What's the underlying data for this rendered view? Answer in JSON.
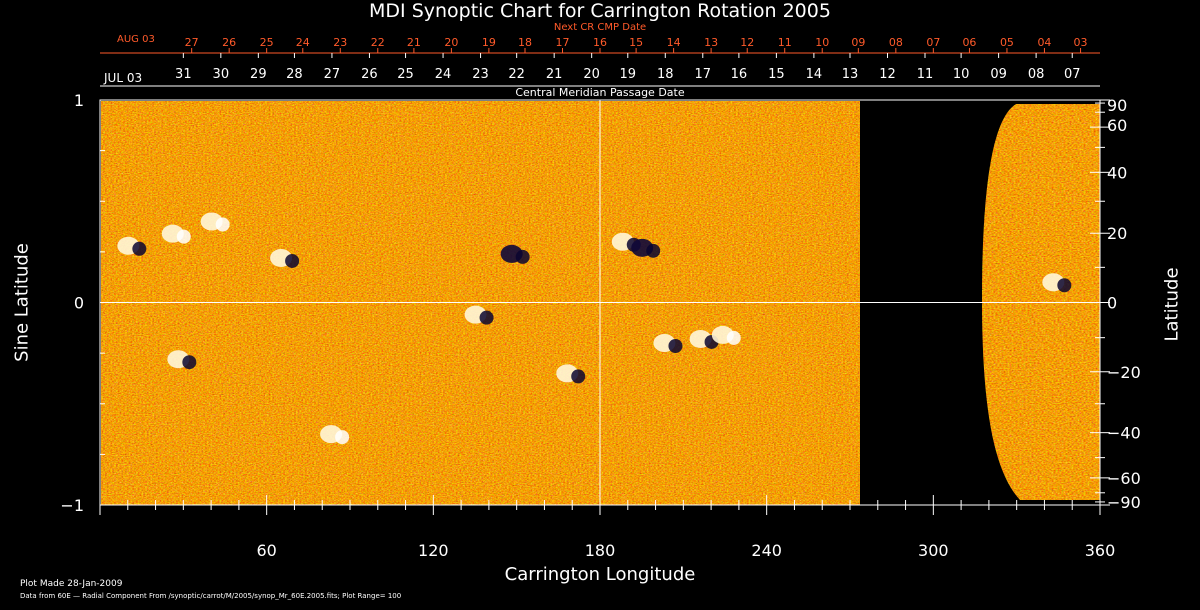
{
  "chart_data": {
    "type": "heatmap",
    "title": "MDI Synoptic Chart for Carrington Rotation 2005",
    "xlabel": "Carrington Longitude",
    "ylabel_left": "Sine Latitude",
    "ylabel_right": "Latitude",
    "xlim": [
      0,
      360
    ],
    "ylim": [
      -1,
      1
    ],
    "x_ticks": [
      "60",
      "120",
      "180",
      "240",
      "300",
      "360"
    ],
    "x_tick_values": [
      60,
      120,
      180,
      240,
      300,
      360
    ],
    "y_left_ticks": [
      "1",
      "0",
      "−1"
    ],
    "y_left_values": [
      1,
      0,
      -1
    ],
    "y_right_ticks": [
      "90",
      "60",
      "40",
      "20",
      "0",
      "−20",
      "−40",
      "−60",
      "−90"
    ],
    "y_right_values": [
      90,
      60,
      40,
      20,
      0,
      -20,
      -40,
      -60,
      -90
    ],
    "top_axis_title": "Next CR CMP Date",
    "top_axis_start": "AUG 03",
    "top_axis_dates": [
      "27",
      "26",
      "25",
      "24",
      "23",
      "22",
      "21",
      "20",
      "19",
      "18",
      "17",
      "16",
      "15",
      "14",
      "13",
      "12",
      "11",
      "10",
      "09",
      "08",
      "07",
      "06",
      "05",
      "04",
      "03"
    ],
    "top_axis_date_longitudes": [
      33,
      46.5,
      60,
      73,
      86.5,
      100,
      113,
      126.5,
      140,
      153,
      166.5,
      180,
      193,
      206.5,
      220,
      233,
      246.5,
      260,
      273,
      286.5,
      300,
      313,
      326.5,
      340,
      353
    ],
    "cmp_axis_title": "Central Meridian Passage Date",
    "cmp_axis_start": "JUL 03",
    "cmp_axis_dates": [
      "31",
      "30",
      "29",
      "28",
      "27",
      "26",
      "25",
      "24",
      "23",
      "22",
      "21",
      "20",
      "19",
      "18",
      "17",
      "16",
      "15",
      "14",
      "13",
      "12",
      "11",
      "10",
      "09",
      "08",
      "07"
    ],
    "cmp_axis_date_longitudes": [
      30,
      43.5,
      57,
      70,
      83.5,
      97,
      110,
      123.5,
      137,
      150,
      163.5,
      177,
      190,
      203.5,
      217,
      230,
      243.5,
      257,
      270,
      283.5,
      297,
      310,
      323.5,
      337,
      350
    ],
    "data_coverage": [
      {
        "region": "observed",
        "lon_range": [
          0,
          273
        ]
      },
      {
        "region": "no-data",
        "lon_range": [
          273,
          318
        ]
      },
      {
        "region": "observed-curved-edge",
        "lon_range": [
          318,
          360
        ]
      }
    ],
    "gridlines": {
      "x": [
        180
      ],
      "y": [
        0
      ]
    },
    "colorscale": [
      "#1a0a4a",
      "#8a1a00",
      "#d63a00",
      "#ff7a10",
      "#ffe060",
      "#ffffff"
    ],
    "plot_range": 100,
    "active_regions": [
      {
        "lon": 12,
        "sinlat": 0.28,
        "polarity": "mixed"
      },
      {
        "lon": 28,
        "sinlat": 0.34,
        "polarity": "positive"
      },
      {
        "lon": 42,
        "sinlat": 0.4,
        "polarity": "positive"
      },
      {
        "lon": 67,
        "sinlat": 0.22,
        "polarity": "mixed"
      },
      {
        "lon": 30,
        "sinlat": -0.28,
        "polarity": "mixed"
      },
      {
        "lon": 137,
        "sinlat": -0.06,
        "polarity": "mixed"
      },
      {
        "lon": 150,
        "sinlat": 0.24,
        "polarity": "negative"
      },
      {
        "lon": 190,
        "sinlat": 0.3,
        "polarity": "mixed"
      },
      {
        "lon": 197,
        "sinlat": 0.27,
        "polarity": "negative"
      },
      {
        "lon": 218,
        "sinlat": -0.18,
        "polarity": "mixed"
      },
      {
        "lon": 226,
        "sinlat": -0.16,
        "polarity": "positive"
      },
      {
        "lon": 205,
        "sinlat": -0.2,
        "polarity": "mixed"
      },
      {
        "lon": 85,
        "sinlat": -0.65,
        "polarity": "positive"
      },
      {
        "lon": 170,
        "sinlat": -0.35,
        "polarity": "mixed"
      },
      {
        "lon": 345,
        "sinlat": 0.1,
        "polarity": "mixed"
      }
    ]
  },
  "footer": {
    "plot_made": "Plot Made 28-Jan-2009",
    "data_source": "Data from 60E — Radial Component From /synoptic/carrot/M/2005/synop_Mr_60E.2005.fits; Plot Range= 100"
  }
}
